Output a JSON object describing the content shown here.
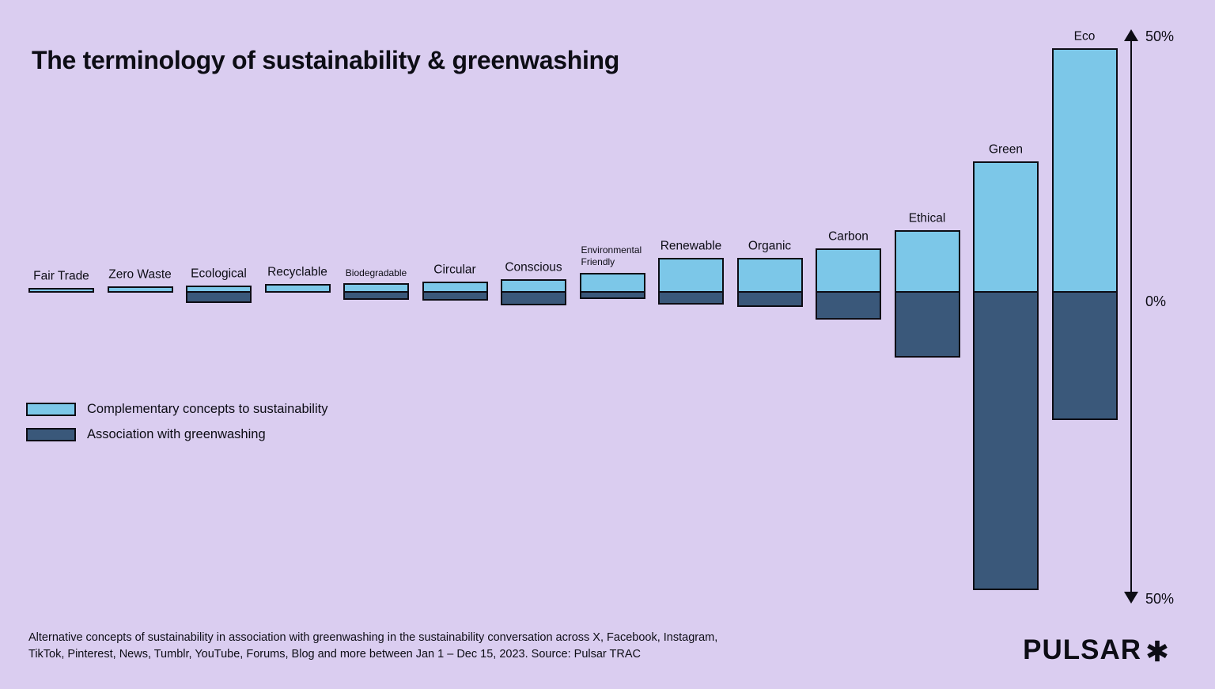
{
  "title": "The terminology of sustainability & greenwashing",
  "colors": {
    "background": "#dacdf0",
    "positive": "#7cc7e8",
    "negative": "#3a587a",
    "outline": "#0d0d15",
    "text": "#0d0d15"
  },
  "axis": {
    "top_label": "50%",
    "zero_label": "0%",
    "bottom_label": "50%"
  },
  "legend": [
    {
      "label": "Complementary concepts to sustainability"
    },
    {
      "label": "Association with greenwashing"
    }
  ],
  "footnote_line1": "Alternative concepts of sustainability in association with greenwashing in the sustainability conversation across X, Facebook, Instagram,",
  "footnote_line2": "TikTok, Pinterest, News, Tumblr, YouTube, Forums, Blog and more between Jan 1 – Dec 15, 2023. Source: Pulsar TRAC",
  "logo": {
    "text": "PULSAR",
    "mark": "asterisk"
  },
  "chart_data": {
    "type": "bar",
    "subtype": "diverging-stacked",
    "title": "The terminology of sustainability & greenwashing",
    "categories": [
      "Fair Trade",
      "Zero Waste",
      "Ecological",
      "Recyclable",
      "Biodegradable",
      "Circular",
      "Conscious",
      "Environmental Friendly",
      "Renewable",
      "Organic",
      "Carbon",
      "Ethical",
      "Green",
      "Eco"
    ],
    "series": [
      {
        "name": "Complementary concepts to sustainability",
        "direction": "up",
        "color": "#7cc7e8",
        "values": [
          1.0,
          1.3,
          1.4,
          1.7,
          1.9,
          2.2,
          2.6,
          3.9,
          6.8,
          6.8,
          8.7,
          12.2,
          25.7,
          47.9
        ]
      },
      {
        "name": "Association with greenwashing",
        "direction": "down",
        "color": "#3a587a",
        "values": [
          0,
          0,
          1.7,
          0,
          1.2,
          1.3,
          2.1,
          1.0,
          1.9,
          2.3,
          4.4,
          10.6,
          48.5,
          20.8
        ]
      }
    ],
    "units": "%",
    "ylim": [
      -50,
      50
    ],
    "grid": false,
    "axis_side": "right",
    "legend_position": "middle-left",
    "label_layout": {
      "small_label_indices": [
        4,
        7
      ],
      "two_line_indices": [
        7
      ]
    }
  }
}
